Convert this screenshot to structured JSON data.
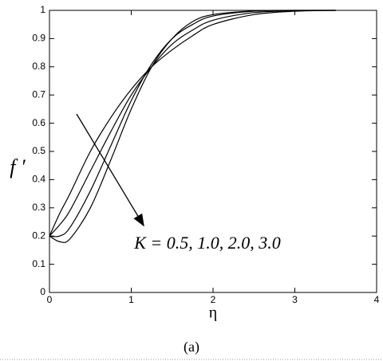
{
  "chart_data": {
    "type": "line",
    "x_label": "η",
    "y_label": "f ′",
    "annotation": "K = 0.5, 1.0, 2.0, 3.0",
    "caption": "(a)",
    "x": [
      0,
      0.125,
      0.25,
      0.5,
      0.75,
      1,
      1.25,
      1.5,
      1.75,
      2,
      2.5,
      3,
      3.5
    ],
    "series": [
      {
        "color": "#000000",
        "values": [
          0.2,
          0.28,
          0.35,
          0.5,
          0.62,
          0.72,
          0.8,
          0.86,
          0.91,
          0.95,
          0.985,
          0.997,
          1
        ]
      },
      {
        "color": "#000000",
        "values": [
          0.2,
          0.24,
          0.29,
          0.43,
          0.57,
          0.7,
          0.8,
          0.88,
          0.93,
          0.965,
          0.992,
          0.999,
          1
        ]
      },
      {
        "color": "#000000",
        "values": [
          0.2,
          0.2,
          0.23,
          0.36,
          0.52,
          0.68,
          0.81,
          0.9,
          0.95,
          0.98,
          0.997,
          1,
          1
        ]
      },
      {
        "color": "#000000",
        "values": [
          0.2,
          0.18,
          0.19,
          0.3,
          0.47,
          0.65,
          0.8,
          0.9,
          0.96,
          0.985,
          0.998,
          1,
          1
        ]
      }
    ],
    "xlim": [
      0,
      4
    ],
    "ylim": [
      0,
      1
    ],
    "xticks": [
      0,
      1,
      2,
      3,
      4
    ],
    "yticks": [
      0,
      0.1,
      0.2,
      0.3,
      0.4,
      0.5,
      0.6,
      0.7,
      0.8,
      0.9,
      1
    ]
  }
}
